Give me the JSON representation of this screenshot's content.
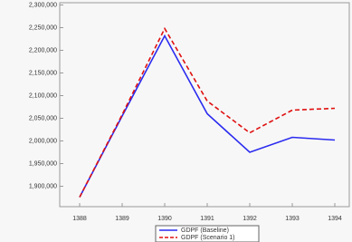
{
  "chart_data": {
    "type": "line",
    "categories": [
      "1388",
      "1389",
      "1390",
      "1391",
      "1392",
      "1393",
      "1394"
    ],
    "series": [
      {
        "name": "GDPF (Baseline)",
        "color": "#2a2af0",
        "dash": false,
        "values": [
          1876000,
          2055000,
          2232000,
          2060000,
          1975000,
          2008000,
          2002000
        ]
      },
      {
        "name": "GDPF (Scenario 1)",
        "color": "#e01010",
        "dash": true,
        "values": [
          1876000,
          2058000,
          2248000,
          2088000,
          2018000,
          2068000,
          2072000
        ]
      }
    ],
    "ylim": [
      1855000,
      2305000
    ],
    "yticks": [
      {
        "value": 1900000,
        "label": "1,900,000"
      },
      {
        "value": 1950000,
        "label": "1,950,000"
      },
      {
        "value": 2000000,
        "label": "2,000,000"
      },
      {
        "value": 2050000,
        "label": "2,050,000"
      },
      {
        "value": 2100000,
        "label": "2,100,000"
      },
      {
        "value": 2150000,
        "label": "2,150,000"
      },
      {
        "value": 2200000,
        "label": "2,200,000"
      },
      {
        "value": 2250000,
        "label": "2,250,000"
      },
      {
        "value": 2300000,
        "label": "2,300,000"
      }
    ],
    "grid": false,
    "legend": "bottom"
  }
}
